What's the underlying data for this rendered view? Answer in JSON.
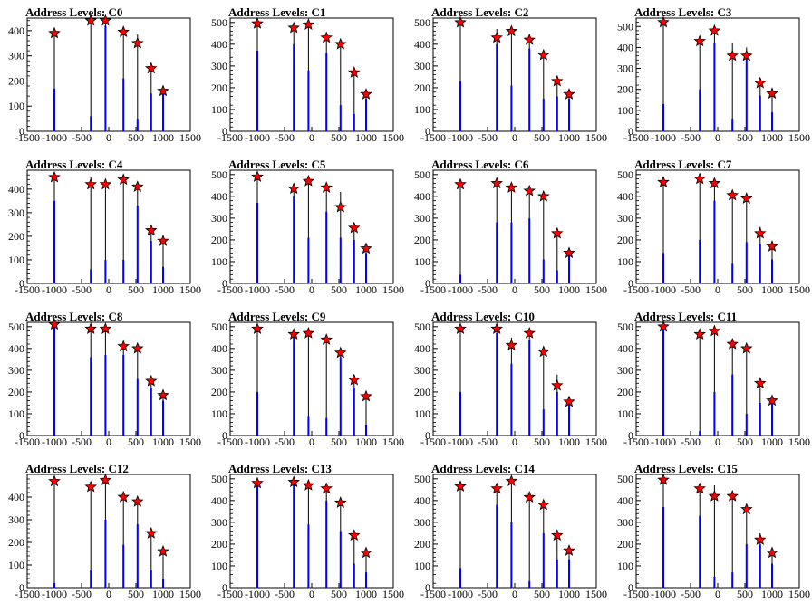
{
  "page": {
    "background": "#ffffff"
  },
  "style": {
    "bar_color": "#0000ff",
    "marker_fill": "#ff0000",
    "marker_stroke": "#000000",
    "axis_color": "#000000"
  },
  "chart_data": [
    {
      "type": "bar",
      "title": "Address Levels: C0",
      "xlim": [
        -1500,
        1500
      ],
      "ylim": [
        0,
        450
      ],
      "x_ticks": [
        -1500,
        -1000,
        -500,
        0,
        500,
        1000,
        1500
      ],
      "y_ticks": [
        0,
        100,
        200,
        300,
        400
      ],
      "peaks": [
        {
          "x": -1000,
          "y": 390,
          "tall": 390,
          "blue": 170
        },
        {
          "x": -330,
          "y": 440,
          "tall": 440,
          "blue": 60
        },
        {
          "x": -60,
          "y": 440,
          "tall": 440,
          "blue": 420
        },
        {
          "x": 270,
          "y": 395,
          "tall": 395,
          "blue": 210
        },
        {
          "x": 530,
          "y": 350,
          "tall": 385,
          "blue": 50
        },
        {
          "x": 780,
          "y": 250,
          "tall": 250,
          "blue": 150
        },
        {
          "x": 1000,
          "y": 160,
          "tall": 160,
          "blue": 150
        }
      ]
    },
    {
      "type": "bar",
      "title": "Address Levels: C1",
      "xlim": [
        -1500,
        1500
      ],
      "ylim": [
        0,
        520
      ],
      "x_ticks": [
        -1500,
        -1000,
        -500,
        0,
        500,
        1000,
        1500
      ],
      "y_ticks": [
        0,
        100,
        200,
        300,
        400,
        500
      ],
      "peaks": [
        {
          "x": -1000,
          "y": 495,
          "tall": 495,
          "blue": 370
        },
        {
          "x": -330,
          "y": 475,
          "tall": 475,
          "blue": 400
        },
        {
          "x": -60,
          "y": 490,
          "tall": 490,
          "blue": 280
        },
        {
          "x": 270,
          "y": 430,
          "tall": 430,
          "blue": 360
        },
        {
          "x": 530,
          "y": 400,
          "tall": 400,
          "blue": 120
        },
        {
          "x": 780,
          "y": 270,
          "tall": 270,
          "blue": 80
        },
        {
          "x": 1000,
          "y": 170,
          "tall": 170,
          "blue": 150
        }
      ]
    },
    {
      "type": "bar",
      "title": "Address Levels: C2",
      "xlim": [
        -1500,
        1500
      ],
      "ylim": [
        0,
        520
      ],
      "x_ticks": [
        -1500,
        -1000,
        -500,
        0,
        500,
        1000,
        1500
      ],
      "y_ticks": [
        0,
        100,
        200,
        300,
        400,
        500
      ],
      "peaks": [
        {
          "x": -1000,
          "y": 500,
          "tall": 500,
          "blue": 230
        },
        {
          "x": -330,
          "y": 430,
          "tall": 470,
          "blue": 400
        },
        {
          "x": -60,
          "y": 460,
          "tall": 460,
          "blue": 210
        },
        {
          "x": 270,
          "y": 420,
          "tall": 420,
          "blue": 380
        },
        {
          "x": 530,
          "y": 350,
          "tall": 350,
          "blue": 150
        },
        {
          "x": 780,
          "y": 230,
          "tall": 230,
          "blue": 160
        },
        {
          "x": 1000,
          "y": 170,
          "tall": 170,
          "blue": 150
        }
      ]
    },
    {
      "type": "bar",
      "title": "Address Levels: C3",
      "xlim": [
        -1500,
        1500
      ],
      "ylim": [
        0,
        540
      ],
      "x_ticks": [
        -1500,
        -1000,
        -500,
        0,
        500,
        1000,
        1500
      ],
      "y_ticks": [
        0,
        100,
        200,
        300,
        400,
        500
      ],
      "peaks": [
        {
          "x": -1000,
          "y": 520,
          "tall": 520,
          "blue": 130
        },
        {
          "x": -330,
          "y": 430,
          "tall": 430,
          "blue": 200
        },
        {
          "x": -60,
          "y": 480,
          "tall": 480,
          "blue": 420
        },
        {
          "x": 270,
          "y": 360,
          "tall": 420,
          "blue": 60
        },
        {
          "x": 530,
          "y": 360,
          "tall": 400,
          "blue": 350
        },
        {
          "x": 780,
          "y": 230,
          "tall": 230,
          "blue": 170
        },
        {
          "x": 1000,
          "y": 180,
          "tall": 180,
          "blue": 90
        }
      ]
    },
    {
      "type": "bar",
      "title": "Address Levels: C4",
      "xlim": [
        -1500,
        1500
      ],
      "ylim": [
        0,
        480
      ],
      "x_ticks": [
        -1500,
        -1000,
        -500,
        0,
        500,
        1000,
        1500
      ],
      "y_ticks": [
        0,
        100,
        200,
        300,
        400
      ],
      "peaks": [
        {
          "x": -1000,
          "y": 450,
          "tall": 450,
          "blue": 350
        },
        {
          "x": -330,
          "y": 420,
          "tall": 450,
          "blue": 60
        },
        {
          "x": -60,
          "y": 420,
          "tall": 420,
          "blue": 100
        },
        {
          "x": 270,
          "y": 440,
          "tall": 440,
          "blue": 100
        },
        {
          "x": 530,
          "y": 410,
          "tall": 410,
          "blue": 330
        },
        {
          "x": 780,
          "y": 225,
          "tall": 225,
          "blue": 180
        },
        {
          "x": 1000,
          "y": 180,
          "tall": 180,
          "blue": 70
        }
      ]
    },
    {
      "type": "bar",
      "title": "Address Levels: C5",
      "xlim": [
        -1500,
        1500
      ],
      "ylim": [
        0,
        520
      ],
      "x_ticks": [
        -1500,
        -1000,
        -500,
        0,
        500,
        1000,
        1500
      ],
      "y_ticks": [
        0,
        100,
        200,
        300,
        400,
        500
      ],
      "peaks": [
        {
          "x": -1000,
          "y": 490,
          "tall": 490,
          "blue": 370
        },
        {
          "x": -330,
          "y": 435,
          "tall": 435,
          "blue": 400
        },
        {
          "x": -60,
          "y": 470,
          "tall": 470,
          "blue": 210
        },
        {
          "x": 270,
          "y": 440,
          "tall": 440,
          "blue": 330
        },
        {
          "x": 530,
          "y": 350,
          "tall": 420,
          "blue": 210
        },
        {
          "x": 780,
          "y": 255,
          "tall": 255,
          "blue": 200
        },
        {
          "x": 1000,
          "y": 160,
          "tall": 160,
          "blue": 140
        }
      ]
    },
    {
      "type": "bar",
      "title": "Address Levels: C6",
      "xlim": [
        -1500,
        1500
      ],
      "ylim": [
        0,
        520
      ],
      "x_ticks": [
        -1500,
        -1000,
        -500,
        0,
        500,
        1000,
        1500
      ],
      "y_ticks": [
        0,
        100,
        200,
        300,
        400,
        500
      ],
      "peaks": [
        {
          "x": -1000,
          "y": 455,
          "tall": 455,
          "blue": 40
        },
        {
          "x": -330,
          "y": 460,
          "tall": 460,
          "blue": 280
        },
        {
          "x": -60,
          "y": 440,
          "tall": 440,
          "blue": 280
        },
        {
          "x": 270,
          "y": 425,
          "tall": 425,
          "blue": 300
        },
        {
          "x": 530,
          "y": 400,
          "tall": 400,
          "blue": 110
        },
        {
          "x": 780,
          "y": 230,
          "tall": 230,
          "blue": 60
        },
        {
          "x": 1000,
          "y": 140,
          "tall": 140,
          "blue": 130
        }
      ]
    },
    {
      "type": "bar",
      "title": "Address Levels: C7",
      "xlim": [
        -1500,
        1500
      ],
      "ylim": [
        0,
        520
      ],
      "x_ticks": [
        -1500,
        -1000,
        -500,
        0,
        500,
        1000,
        1500
      ],
      "y_ticks": [
        0,
        100,
        200,
        300,
        400,
        500
      ],
      "peaks": [
        {
          "x": -1000,
          "y": 465,
          "tall": 465,
          "blue": 140
        },
        {
          "x": -330,
          "y": 480,
          "tall": 480,
          "blue": 200
        },
        {
          "x": -60,
          "y": 460,
          "tall": 460,
          "blue": 380
        },
        {
          "x": 270,
          "y": 405,
          "tall": 405,
          "blue": 90
        },
        {
          "x": 530,
          "y": 390,
          "tall": 390,
          "blue": 190
        },
        {
          "x": 780,
          "y": 230,
          "tall": 260,
          "blue": 180
        },
        {
          "x": 1000,
          "y": 170,
          "tall": 170,
          "blue": 110
        }
      ]
    },
    {
      "type": "bar",
      "title": "Address Levels: C8",
      "xlim": [
        -1500,
        1500
      ],
      "ylim": [
        0,
        520
      ],
      "x_ticks": [
        -1500,
        -1000,
        -500,
        0,
        500,
        1000,
        1500
      ],
      "y_ticks": [
        0,
        100,
        200,
        300,
        400,
        500
      ],
      "peaks": [
        {
          "x": -1000,
          "y": 510,
          "tall": 510,
          "blue": 500
        },
        {
          "x": -330,
          "y": 490,
          "tall": 490,
          "blue": 360
        },
        {
          "x": -60,
          "y": 490,
          "tall": 490,
          "blue": 370
        },
        {
          "x": 270,
          "y": 410,
          "tall": 410,
          "blue": 370
        },
        {
          "x": 530,
          "y": 400,
          "tall": 400,
          "blue": 260
        },
        {
          "x": 780,
          "y": 250,
          "tall": 250,
          "blue": 220
        },
        {
          "x": 1000,
          "y": 185,
          "tall": 185,
          "blue": 160
        }
      ]
    },
    {
      "type": "bar",
      "title": "Address Levels: C9",
      "xlim": [
        -1500,
        1500
      ],
      "ylim": [
        0,
        520
      ],
      "x_ticks": [
        -1500,
        -1000,
        -500,
        0,
        500,
        1000,
        1500
      ],
      "y_ticks": [
        0,
        100,
        200,
        300,
        400,
        500
      ],
      "peaks": [
        {
          "x": -1000,
          "y": 490,
          "tall": 490,
          "blue": 200
        },
        {
          "x": -330,
          "y": 465,
          "tall": 465,
          "blue": 450
        },
        {
          "x": -60,
          "y": 470,
          "tall": 470,
          "blue": 90
        },
        {
          "x": 270,
          "y": 440,
          "tall": 440,
          "blue": 80
        },
        {
          "x": 530,
          "y": 380,
          "tall": 380,
          "blue": 360
        },
        {
          "x": 780,
          "y": 255,
          "tall": 255,
          "blue": 220
        },
        {
          "x": 1000,
          "y": 180,
          "tall": 180,
          "blue": 50
        }
      ]
    },
    {
      "type": "bar",
      "title": "Address Levels: C10",
      "xlim": [
        -1500,
        1500
      ],
      "ylim": [
        0,
        520
      ],
      "x_ticks": [
        -1500,
        -1000,
        -500,
        0,
        500,
        1000,
        1500
      ],
      "y_ticks": [
        0,
        100,
        200,
        300,
        400,
        500
      ],
      "peaks": [
        {
          "x": -1000,
          "y": 490,
          "tall": 490,
          "blue": 200
        },
        {
          "x": -330,
          "y": 490,
          "tall": 490,
          "blue": 470
        },
        {
          "x": -60,
          "y": 415,
          "tall": 450,
          "blue": 330
        },
        {
          "x": 270,
          "y": 470,
          "tall": 470,
          "blue": 440
        },
        {
          "x": 530,
          "y": 385,
          "tall": 385,
          "blue": 120
        },
        {
          "x": 780,
          "y": 230,
          "tall": 280,
          "blue": 200
        },
        {
          "x": 1000,
          "y": 155,
          "tall": 155,
          "blue": 150
        }
      ]
    },
    {
      "type": "bar",
      "title": "Address Levels: C11",
      "xlim": [
        -1500,
        1500
      ],
      "ylim": [
        0,
        520
      ],
      "x_ticks": [
        -1500,
        -1000,
        -500,
        0,
        500,
        1000,
        1500
      ],
      "y_ticks": [
        0,
        100,
        200,
        300,
        400,
        500
      ],
      "peaks": [
        {
          "x": -1000,
          "y": 500,
          "tall": 500,
          "blue": 500
        },
        {
          "x": -330,
          "y": 465,
          "tall": 465,
          "blue": 20
        },
        {
          "x": -60,
          "y": 480,
          "tall": 480,
          "blue": 200
        },
        {
          "x": 270,
          "y": 420,
          "tall": 420,
          "blue": 280
        },
        {
          "x": 530,
          "y": 400,
          "tall": 400,
          "blue": 100
        },
        {
          "x": 780,
          "y": 240,
          "tall": 240,
          "blue": 150
        },
        {
          "x": 1000,
          "y": 160,
          "tall": 160,
          "blue": 150
        }
      ]
    },
    {
      "type": "bar",
      "title": "Address Levels: C12",
      "xlim": [
        -1500,
        1500
      ],
      "ylim": [
        0,
        500
      ],
      "x_ticks": [
        -1500,
        -1000,
        -500,
        0,
        500,
        1000,
        1500
      ],
      "y_ticks": [
        0,
        100,
        200,
        300,
        400
      ],
      "peaks": [
        {
          "x": -1000,
          "y": 470,
          "tall": 470,
          "blue": 20
        },
        {
          "x": -330,
          "y": 445,
          "tall": 445,
          "blue": 80
        },
        {
          "x": -60,
          "y": 475,
          "tall": 475,
          "blue": 300
        },
        {
          "x": 270,
          "y": 400,
          "tall": 400,
          "blue": 190
        },
        {
          "x": 530,
          "y": 380,
          "tall": 380,
          "blue": 280
        },
        {
          "x": 780,
          "y": 240,
          "tall": 240,
          "blue": 80
        },
        {
          "x": 1000,
          "y": 160,
          "tall": 160,
          "blue": 40
        }
      ]
    },
    {
      "type": "bar",
      "title": "Address Levels: C13",
      "xlim": [
        -1500,
        1500
      ],
      "ylim": [
        0,
        520
      ],
      "x_ticks": [
        -1500,
        -1000,
        -500,
        0,
        500,
        1000,
        1500
      ],
      "y_ticks": [
        0,
        100,
        200,
        300,
        400,
        500
      ],
      "peaks": [
        {
          "x": -1000,
          "y": 480,
          "tall": 480,
          "blue": 470
        },
        {
          "x": -330,
          "y": 485,
          "tall": 485,
          "blue": 470
        },
        {
          "x": -60,
          "y": 470,
          "tall": 470,
          "blue": 290
        },
        {
          "x": 270,
          "y": 455,
          "tall": 455,
          "blue": 400
        },
        {
          "x": 530,
          "y": 390,
          "tall": 390,
          "blue": 260
        },
        {
          "x": 780,
          "y": 240,
          "tall": 240,
          "blue": 110
        },
        {
          "x": 1000,
          "y": 160,
          "tall": 160,
          "blue": 70
        }
      ]
    },
    {
      "type": "bar",
      "title": "Address Levels: C14",
      "xlim": [
        -1500,
        1500
      ],
      "ylim": [
        0,
        520
      ],
      "x_ticks": [
        -1500,
        -1000,
        -500,
        0,
        500,
        1000,
        1500
      ],
      "y_ticks": [
        0,
        100,
        200,
        300,
        400,
        500
      ],
      "peaks": [
        {
          "x": -1000,
          "y": 465,
          "tall": 465,
          "blue": 90
        },
        {
          "x": -330,
          "y": 455,
          "tall": 455,
          "blue": 380
        },
        {
          "x": -60,
          "y": 490,
          "tall": 490,
          "blue": 300
        },
        {
          "x": 270,
          "y": 415,
          "tall": 440,
          "blue": 30
        },
        {
          "x": 530,
          "y": 380,
          "tall": 380,
          "blue": 250
        },
        {
          "x": 780,
          "y": 240,
          "tall": 240,
          "blue": 130
        },
        {
          "x": 1000,
          "y": 170,
          "tall": 170,
          "blue": 130
        }
      ]
    },
    {
      "type": "bar",
      "title": "Address Levels: C15",
      "xlim": [
        -1500,
        1500
      ],
      "ylim": [
        0,
        520
      ],
      "x_ticks": [
        -1500,
        -1000,
        -500,
        0,
        500,
        1000,
        1500
      ],
      "y_ticks": [
        0,
        100,
        200,
        300,
        400,
        500
      ],
      "peaks": [
        {
          "x": -1000,
          "y": 495,
          "tall": 495,
          "blue": 370
        },
        {
          "x": -330,
          "y": 455,
          "tall": 455,
          "blue": 330
        },
        {
          "x": -60,
          "y": 420,
          "tall": 470,
          "blue": 50
        },
        {
          "x": 270,
          "y": 420,
          "tall": 420,
          "blue": 70
        },
        {
          "x": 530,
          "y": 360,
          "tall": 360,
          "blue": 200
        },
        {
          "x": 780,
          "y": 220,
          "tall": 250,
          "blue": 200
        },
        {
          "x": 1000,
          "y": 160,
          "tall": 160,
          "blue": 110
        }
      ]
    }
  ]
}
